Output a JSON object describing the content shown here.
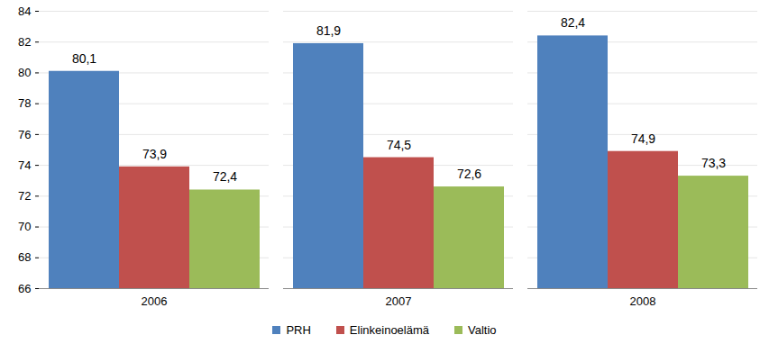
{
  "chart_data": {
    "type": "bar",
    "categories": [
      "2006",
      "2007",
      "2008"
    ],
    "series": [
      {
        "name": "PRH",
        "color": "#4f81bd",
        "values": [
          80.1,
          81.9,
          82.4
        ],
        "value_labels": [
          "80,1",
          "81,9",
          "82,4"
        ]
      },
      {
        "name": "Elinkeinoelämä",
        "color": "#c0504d",
        "values": [
          73.9,
          74.5,
          74.9
        ],
        "value_labels": [
          "73,9",
          "74,5",
          "74,9"
        ]
      },
      {
        "name": "Valtio",
        "color": "#9bbb59",
        "values": [
          72.4,
          72.6,
          73.3
        ],
        "value_labels": [
          "72,4",
          "72,6",
          "73,3"
        ]
      }
    ],
    "ylim": [
      66,
      84
    ],
    "yticks": [
      66,
      68,
      70,
      72,
      74,
      76,
      78,
      80,
      82,
      84
    ],
    "grid": true,
    "data_labels": true,
    "legend": "bottom"
  }
}
